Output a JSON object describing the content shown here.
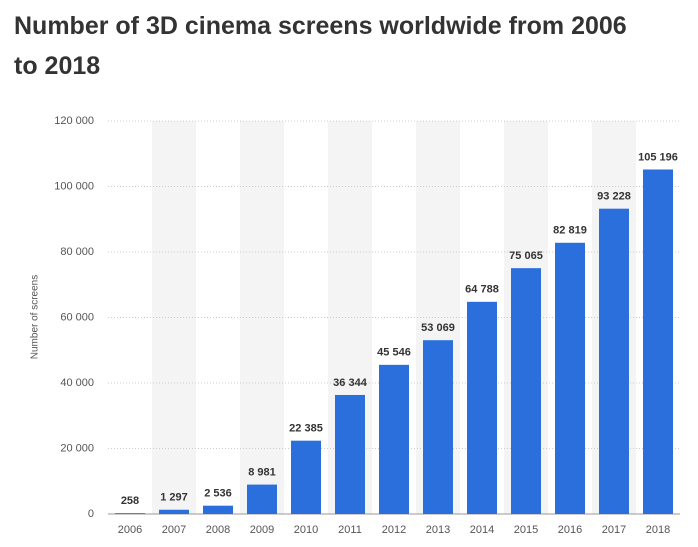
{
  "chart_data": {
    "type": "bar",
    "title": "Number of 3D cinema screens worldwide from 2006 to 2018",
    "y_label": "Number of screens",
    "categories": [
      "2006",
      "2007",
      "2008",
      "2009",
      "2010",
      "2011",
      "2012",
      "2013",
      "2014",
      "2015",
      "2016",
      "2017",
      "2018"
    ],
    "values": [
      258,
      1297,
      2536,
      8981,
      22385,
      36344,
      45546,
      53069,
      64788,
      75065,
      82819,
      93228,
      105196
    ],
    "value_labels": [
      "258",
      "1 297",
      "2 536",
      "8 981",
      "22 385",
      "36 344",
      "45 546",
      "53 069",
      "64 788",
      "75 065",
      "82 819",
      "93 228",
      "105 196"
    ],
    "color": "#2a6fdb",
    "ylim": [
      0,
      120000
    ],
    "yticks": [
      0,
      {
        "value": 20000,
        "label": "20 000"
      },
      {
        "value": 40000,
        "label": "40 000"
      },
      {
        "value": 60000,
        "label": "60 000"
      },
      {
        "value": 80000,
        "label": "80 000"
      },
      {
        "value": 100000,
        "label": "100 000"
      },
      {
        "value": 120000,
        "label": "120 000"
      }
    ],
    "grid": true
  }
}
